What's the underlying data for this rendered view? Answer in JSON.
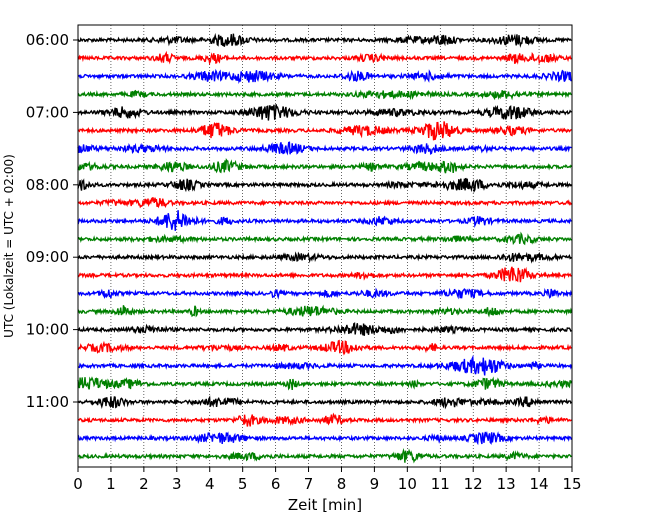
{
  "chart_data": {
    "type": "line",
    "subtype": "helicorder-seismogram",
    "xlabel": "Zeit  [min]",
    "ylabel": "UTC (Lokalzeit = UTC + 02:00)",
    "xlim": [
      0,
      15
    ],
    "x_ticks": [
      "0",
      "1",
      "2",
      "3",
      "4",
      "5",
      "6",
      "7",
      "8",
      "9",
      "10",
      "11",
      "12",
      "13",
      "14",
      "15"
    ],
    "y_tick_labels": [
      "06:00",
      "07:00",
      "08:00",
      "09:00",
      "10:00",
      "11:00"
    ],
    "minutes_per_trace": 15,
    "trace_count": 24,
    "start_time": "06:00",
    "vertical_grid": "dotted at each minute",
    "trace_colors": [
      "#000000",
      "#ff0000",
      "#0000ff",
      "#008000"
    ]
  }
}
